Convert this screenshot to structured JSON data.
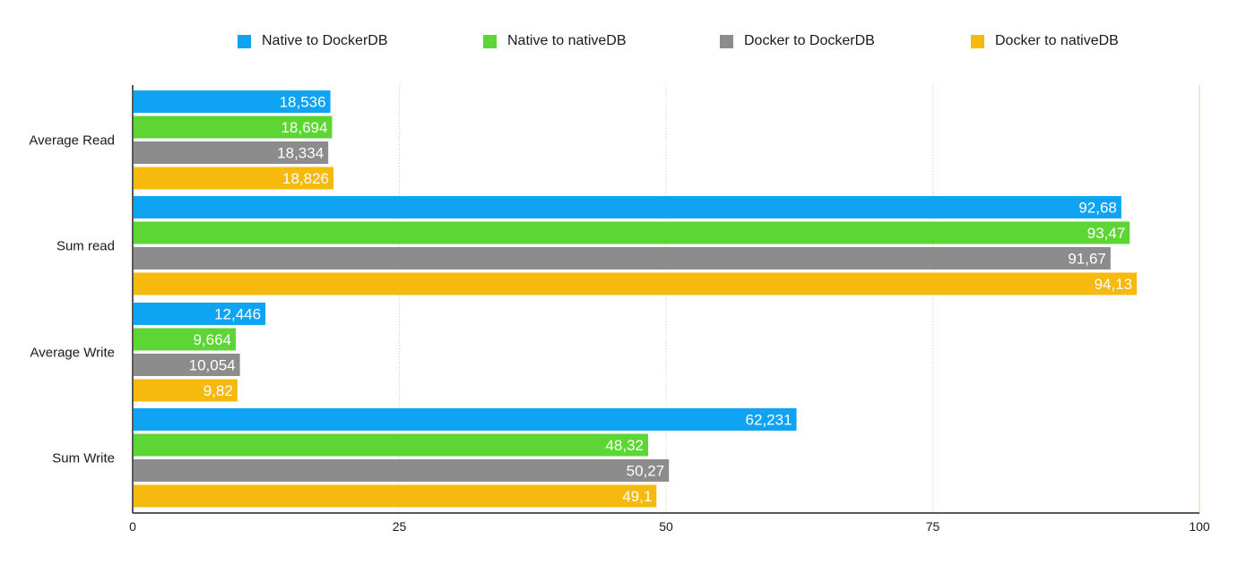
{
  "chart_data": {
    "type": "bar",
    "orientation": "horizontal",
    "categories": [
      "Average Read",
      "Sum read",
      "Average Write",
      "Sum Write"
    ],
    "series": [
      {
        "name": "Native to DockerDB",
        "color": "#0fa3f4",
        "values": [
          18.536,
          92.68,
          12.446,
          62.231
        ],
        "labels": [
          "18,536",
          "92,68",
          "12,446",
          "62,231"
        ]
      },
      {
        "name": "Native to nativeDB",
        "color": "#5dd534",
        "values": [
          18.694,
          93.47,
          9.664,
          48.32
        ],
        "labels": [
          "18,694",
          "93,47",
          "9,664",
          "48,32"
        ]
      },
      {
        "name": "Docker to DockerDB",
        "color": "#8c8c8c",
        "values": [
          18.334,
          91.67,
          10.054,
          50.27
        ],
        "labels": [
          "18,334",
          "91,67",
          "10,054",
          "50,27"
        ]
      },
      {
        "name": "Docker to nativeDB",
        "color": "#f6b90d",
        "values": [
          18.826,
          94.13,
          9.82,
          49.1
        ],
        "labels": [
          "18,826",
          "94,13",
          "9,82",
          "49,1"
        ]
      }
    ],
    "x_ticks": [
      0,
      25,
      50,
      75,
      100
    ],
    "x_tick_labels": [
      "0",
      "25",
      "50",
      "75",
      "100"
    ],
    "xlim": [
      0,
      100
    ],
    "grid": true,
    "legend_position": "top"
  }
}
